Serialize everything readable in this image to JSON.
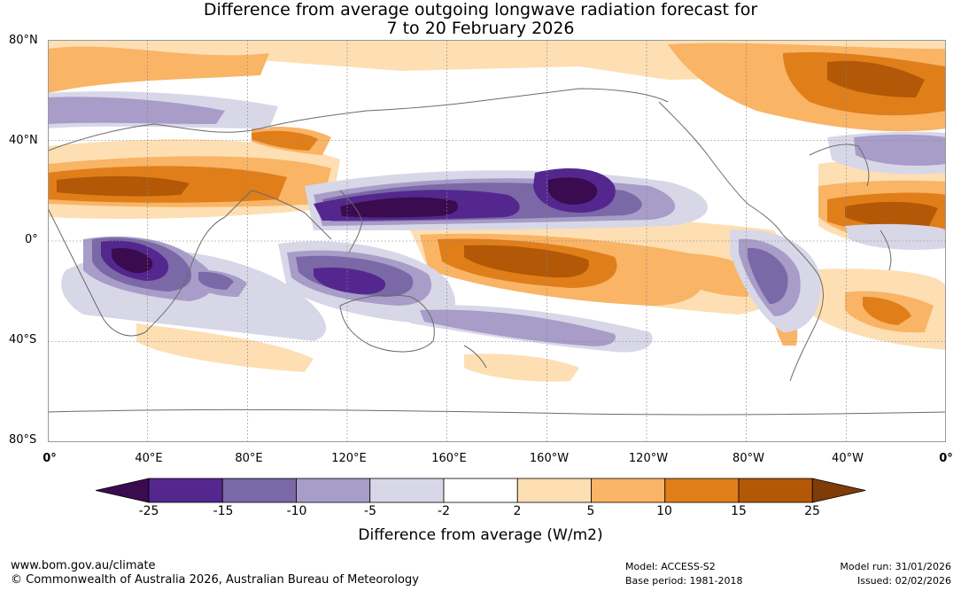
{
  "title_line1": "Difference from average outgoing longwave radiation forecast for",
  "title_line2": "7 to 20 February 2026",
  "lat_labels": [
    "80°N",
    "40°N",
    "0°",
    "40°S",
    "80°S"
  ],
  "lon_labels": [
    "0°",
    "40°E",
    "80°E",
    "120°E",
    "160°E",
    "160°W",
    "120°W",
    "80°W",
    "40°W",
    "0°"
  ],
  "legend": {
    "title": "Difference from average (W/m2)",
    "ticks": [
      "-25",
      "-15",
      "-10",
      "-5",
      "-2",
      "2",
      "5",
      "10",
      "15",
      "25"
    ],
    "colors": [
      "#3b0b4f",
      "#54278f",
      "#7b68a6",
      "#a89cc8",
      "#d8d7e8",
      "#ffffff",
      "#fddfb3",
      "#f9b466",
      "#e07e1a",
      "#b35806",
      "#7f3b08"
    ]
  },
  "footer": {
    "url": "www.bom.gov.au/climate",
    "copyright": "© Commonwealth of Australia 2026, Australian Bureau of Meteorology",
    "model": "Model: ACCESS-S2",
    "base_period": "Base period: 1981-2018",
    "model_run": "Model run: 31/01/2026",
    "issued": "Issued: 02/02/2026"
  }
}
